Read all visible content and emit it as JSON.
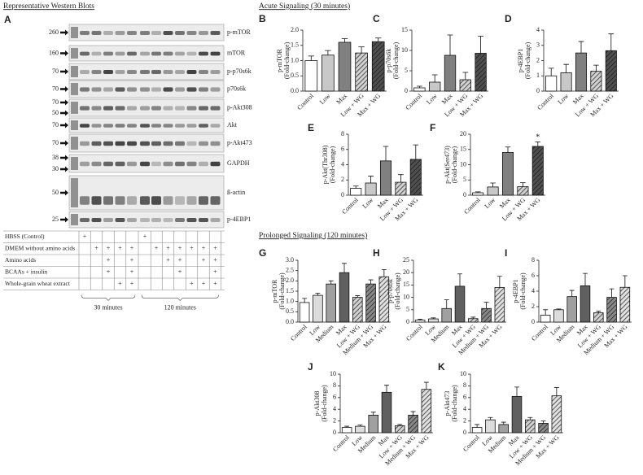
{
  "header": {
    "blots_title": "Representative Western Blots",
    "blots_panel": "A",
    "acute_title": "Acute Signaling (30 minutes)",
    "prolonged_title": "Prolonged Signaling (120 minutes)"
  },
  "blots": [
    {
      "label": "p-mTOR",
      "markers": [
        "260"
      ]
    },
    {
      "label": "mTOR",
      "markers": [
        "160"
      ]
    },
    {
      "label": "p-p70s6k",
      "markers": [
        "70"
      ]
    },
    {
      "label": "p70s6k",
      "markers": [
        "70"
      ]
    },
    {
      "label": "p-Akt308",
      "markers": [
        "70",
        "50"
      ]
    },
    {
      "label": "Akt",
      "markers": [
        "70"
      ]
    },
    {
      "label": "p-Akt473",
      "markers": [
        "70"
      ]
    },
    {
      "label": "GAPDH",
      "markers": [
        "38",
        "30"
      ]
    },
    {
      "label": "ß-actin",
      "markers": [
        "50"
      ]
    },
    {
      "label": "p-4EBP1",
      "markers": [
        "25"
      ]
    }
  ],
  "table": {
    "rows": [
      {
        "label": "HBSS (Control)",
        "cells": [
          "+",
          null,
          null,
          null,
          null,
          "+",
          null,
          null,
          null,
          null,
          null,
          null
        ]
      },
      {
        "label": "DMEM without amino acids",
        "cells": [
          null,
          "+",
          "+",
          "+",
          "+",
          null,
          "+",
          "+",
          "+",
          "+",
          "+",
          "+"
        ]
      },
      {
        "label": "Amino acids",
        "cells": [
          null,
          null,
          "+",
          null,
          "+",
          null,
          null,
          "+",
          "+",
          null,
          "+",
          "+"
        ]
      },
      {
        "label": "BCAAs + insulin",
        "cells": [
          null,
          null,
          "+",
          null,
          "+",
          null,
          null,
          null,
          "+",
          null,
          null,
          "+"
        ]
      },
      {
        "label": "Whole-grain wheat extract",
        "cells": [
          null,
          null,
          null,
          "+",
          "+",
          null,
          null,
          null,
          null,
          "+",
          "+",
          "+"
        ]
      }
    ],
    "groups": [
      "30 minutes",
      "120 minutes"
    ]
  },
  "chart_data": [
    {
      "type": "bar",
      "panel": "B",
      "ylabel": [
        "p-mTOR",
        "(Fold-change)"
      ],
      "categories": [
        "Control",
        "Low",
        "Max",
        "Low + WG",
        "Max + WG"
      ],
      "values": [
        1.0,
        1.18,
        1.6,
        1.25,
        1.62
      ],
      "errors": [
        0.15,
        0.15,
        0.12,
        0.2,
        0.12
      ],
      "colors": [
        "#ffffff",
        "#c8c8c8",
        "#808080",
        "#d0d0d0",
        "#505050"
      ],
      "hatched": [
        false,
        false,
        false,
        true,
        true
      ],
      "ylim": [
        0,
        2
      ],
      "yticks": [
        {
          "value": 0,
          "label": "0.0"
        },
        {
          "value": 0.5,
          "label": "0.5"
        },
        {
          "value": 1,
          "label": "1.0"
        },
        {
          "value": 1.5,
          "label": "1.5"
        },
        {
          "value": 2,
          "label": "2.0"
        }
      ]
    },
    {
      "type": "bar",
      "panel": "C",
      "ylabel": [
        "p-p70s6k",
        "(Fold-change)"
      ],
      "categories": [
        "Control",
        "Low",
        "Max",
        "Low + WG",
        "Max + WG"
      ],
      "values": [
        0.8,
        2.2,
        8.8,
        2.8,
        9.3
      ],
      "errors": [
        0.4,
        1.8,
        5,
        1.8,
        4.2
      ],
      "colors": [
        "#ffffff",
        "#c8c8c8",
        "#808080",
        "#d0d0d0",
        "#505050"
      ],
      "hatched": [
        false,
        false,
        false,
        true,
        true
      ],
      "ylim": [
        0,
        15
      ],
      "yticks": [
        0,
        5,
        10,
        15
      ]
    },
    {
      "type": "bar",
      "panel": "D",
      "ylabel": [
        "p-4EBP1",
        "(Fold-change)"
      ],
      "categories": [
        "Control",
        "Low",
        "Max",
        "Low + WG",
        "Max + WG"
      ],
      "values": [
        1.0,
        1.2,
        2.5,
        1.3,
        2.65
      ],
      "errors": [
        0.5,
        0.55,
        0.75,
        0.4,
        1.1
      ],
      "colors": [
        "#ffffff",
        "#c8c8c8",
        "#808080",
        "#d0d0d0",
        "#505050"
      ],
      "hatched": [
        false,
        false,
        false,
        true,
        true
      ],
      "ylim": [
        0,
        4
      ],
      "yticks": [
        0,
        1,
        2,
        3,
        4
      ]
    },
    {
      "type": "bar",
      "panel": "E",
      "ylabel": [
        "p-Akt(Thr308)",
        "(Fold-change)"
      ],
      "categories": [
        "Control",
        "Low",
        "Max",
        "Low + WG",
        "Max + WG"
      ],
      "values": [
        0.9,
        1.6,
        4.5,
        1.7,
        4.7
      ],
      "errors": [
        0.3,
        0.9,
        1.9,
        1.0,
        1.9
      ],
      "colors": [
        "#ffffff",
        "#c8c8c8",
        "#808080",
        "#d0d0d0",
        "#505050"
      ],
      "hatched": [
        false,
        false,
        false,
        true,
        true
      ],
      "ylim": [
        0,
        8
      ],
      "yticks": [
        0,
        2,
        4,
        6,
        8
      ]
    },
    {
      "type": "bar",
      "panel": "F",
      "ylabel": [
        "p-Akt(Ser473)",
        "(Fold-change)"
      ],
      "categories": [
        "Control",
        "Low",
        "Max",
        "Low + WG",
        "Max + WG"
      ],
      "values": [
        0.8,
        2.7,
        14,
        2.8,
        16
      ],
      "errors": [
        0.3,
        1.3,
        1.8,
        1.3,
        1.5
      ],
      "markers": [
        null,
        null,
        null,
        null,
        "*"
      ],
      "colors": [
        "#ffffff",
        "#c8c8c8",
        "#808080",
        "#d0d0d0",
        "#505050"
      ],
      "hatched": [
        false,
        false,
        false,
        true,
        true
      ],
      "ylim": [
        0,
        20
      ],
      "yticks": [
        0,
        5,
        10,
        15,
        20
      ]
    },
    {
      "type": "bar",
      "panel": "G",
      "ylabel": [
        "p-mTOR",
        "(Fold-change)"
      ],
      "categories": [
        "Control",
        "Low",
        "Medium",
        "Max",
        "Low + WG",
        "Medium + WG",
        "Max + WG"
      ],
      "values": [
        0.95,
        1.3,
        1.85,
        2.4,
        1.2,
        1.85,
        2.2
      ],
      "errors": [
        0.2,
        0.1,
        0.15,
        0.45,
        0.08,
        0.2,
        0.35
      ],
      "colors": [
        "#ffffff",
        "#dcdcdc",
        "#a0a0a0",
        "#606060",
        "#d0d0d0",
        "#888888",
        "#e0e0e0"
      ],
      "hatched": [
        false,
        false,
        false,
        false,
        true,
        true,
        true
      ],
      "ylim": [
        0,
        3
      ],
      "yticks": [
        {
          "value": 0,
          "label": "0.0"
        },
        {
          "value": 0.5,
          "label": "0.5"
        },
        {
          "value": 1,
          "label": "1.0"
        },
        {
          "value": 1.5,
          "label": "1.5"
        },
        {
          "value": 2,
          "label": "2.0"
        },
        {
          "value": 2.5,
          "label": "2.5"
        },
        {
          "value": 3,
          "label": "3.0"
        }
      ]
    },
    {
      "type": "bar",
      "panel": "H",
      "ylabel": [
        "p-p70s6k",
        "(Fold-change)"
      ],
      "categories": [
        "Control",
        "Low",
        "Medium",
        "Max",
        "Low + WG",
        "Medium + WG",
        "Max + WG"
      ],
      "values": [
        0.8,
        1.3,
        5.5,
        14.5,
        1.4,
        5.5,
        14
      ],
      "errors": [
        0.4,
        0.4,
        3.5,
        5,
        0.6,
        2.5,
        4.5
      ],
      "colors": [
        "#ffffff",
        "#dcdcdc",
        "#a0a0a0",
        "#606060",
        "#d0d0d0",
        "#888888",
        "#e0e0e0"
      ],
      "hatched": [
        false,
        false,
        false,
        false,
        true,
        true,
        true
      ],
      "ylim": [
        0,
        25
      ],
      "yticks": [
        0,
        5,
        10,
        15,
        20,
        25
      ]
    },
    {
      "type": "bar",
      "panel": "I",
      "ylabel": [
        "p-4EBP1",
        "(Fold-change)"
      ],
      "categories": [
        "Control",
        "Low",
        "Medium",
        "Max",
        "Low + WG",
        "Medium + WG",
        "Max + WG"
      ],
      "values": [
        0.9,
        1.6,
        3.3,
        4.7,
        1.2,
        3.2,
        4.5
      ],
      "errors": [
        0.7,
        0.1,
        0.8,
        1.6,
        0.2,
        1.1,
        1.5
      ],
      "colors": [
        "#ffffff",
        "#dcdcdc",
        "#a0a0a0",
        "#606060",
        "#d0d0d0",
        "#888888",
        "#e0e0e0"
      ],
      "hatched": [
        false,
        false,
        false,
        false,
        true,
        true,
        true
      ],
      "ylim": [
        0,
        8
      ],
      "yticks": [
        0,
        2,
        4,
        6,
        8
      ]
    },
    {
      "type": "bar",
      "panel": "J",
      "ylabel": [
        "p-Akt308",
        "(Fold-change)"
      ],
      "categories": [
        "Control",
        "Low",
        "Medium",
        "Max",
        "Low + WG",
        "Medium + WG",
        "Max + WG"
      ],
      "values": [
        0.9,
        1.1,
        3.0,
        6.9,
        1.2,
        3.0,
        7.4
      ],
      "errors": [
        0.2,
        0.2,
        0.5,
        1.2,
        0.2,
        0.6,
        1.2
      ],
      "colors": [
        "#ffffff",
        "#dcdcdc",
        "#a0a0a0",
        "#606060",
        "#d0d0d0",
        "#888888",
        "#e0e0e0"
      ],
      "hatched": [
        false,
        false,
        false,
        false,
        true,
        true,
        true
      ],
      "ylim": [
        0,
        10
      ],
      "yticks": [
        0,
        2,
        4,
        6,
        8,
        10
      ]
    },
    {
      "type": "bar",
      "panel": "K",
      "ylabel": [
        "p-Akt473",
        "(Fold-change)"
      ],
      "categories": [
        "Control",
        "Low",
        "Medium",
        "Max",
        "Low + WG",
        "Medium + WG",
        "Max + WG"
      ],
      "values": [
        0.9,
        2.2,
        1.4,
        6.2,
        2.2,
        1.6,
        6.3
      ],
      "errors": [
        0.5,
        0.4,
        0.4,
        1.6,
        0.4,
        0.4,
        1.4
      ],
      "colors": [
        "#ffffff",
        "#dcdcdc",
        "#a0a0a0",
        "#606060",
        "#d0d0d0",
        "#888888",
        "#e0e0e0"
      ],
      "hatched": [
        false,
        false,
        false,
        false,
        true,
        true,
        true
      ],
      "ylim": [
        0,
        10
      ],
      "yticks": [
        0,
        2,
        4,
        6,
        8,
        10
      ]
    }
  ]
}
